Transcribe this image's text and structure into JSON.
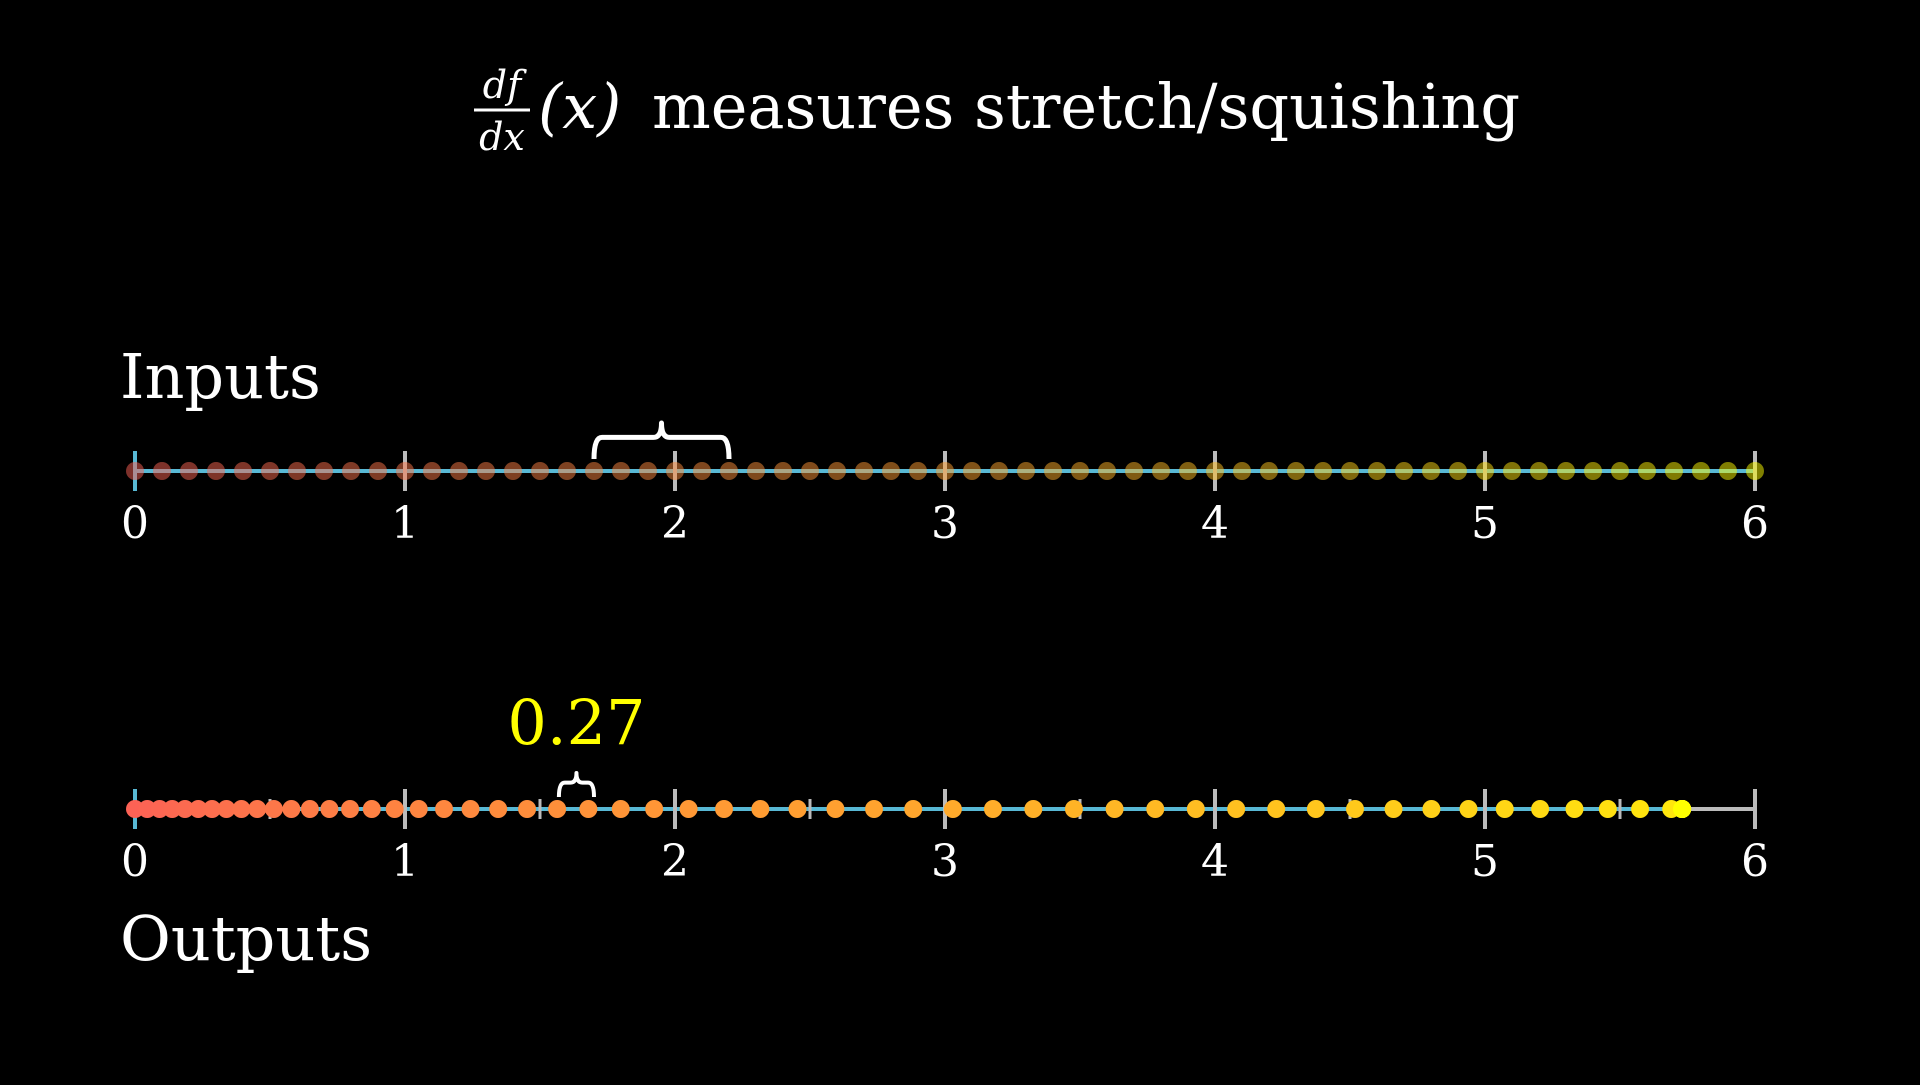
{
  "title": {
    "numerator": "df",
    "denominator": "dx",
    "argument": "(x)",
    "text": "measures stretch/squishing"
  },
  "inputs": {
    "label": "Inputs",
    "ticks": [
      "0",
      "1",
      "2",
      "3",
      "4",
      "5",
      "6"
    ],
    "range": [
      0,
      6
    ],
    "dot_count": 61,
    "dot_opacity": 0.5,
    "brace_range": [
      1.7,
      2.2
    ]
  },
  "outputs": {
    "label": "Outputs",
    "ticks": [
      "0",
      "1",
      "2",
      "3",
      "4",
      "5",
      "6"
    ],
    "range": [
      0,
      6
    ],
    "filled_until": 5.73,
    "brace_range": [
      1.57,
      1.7
    ],
    "brace_value": "0.27"
  },
  "colors": {
    "background": "#000000",
    "axis": "#58b8d4",
    "axis_grey": "#bbbbbb",
    "text": "#ffffff",
    "highlight": "#ffff00",
    "dot_start": "#fc6255",
    "dot_mid": "#ffa030",
    "dot_end": "#ffff00"
  }
}
